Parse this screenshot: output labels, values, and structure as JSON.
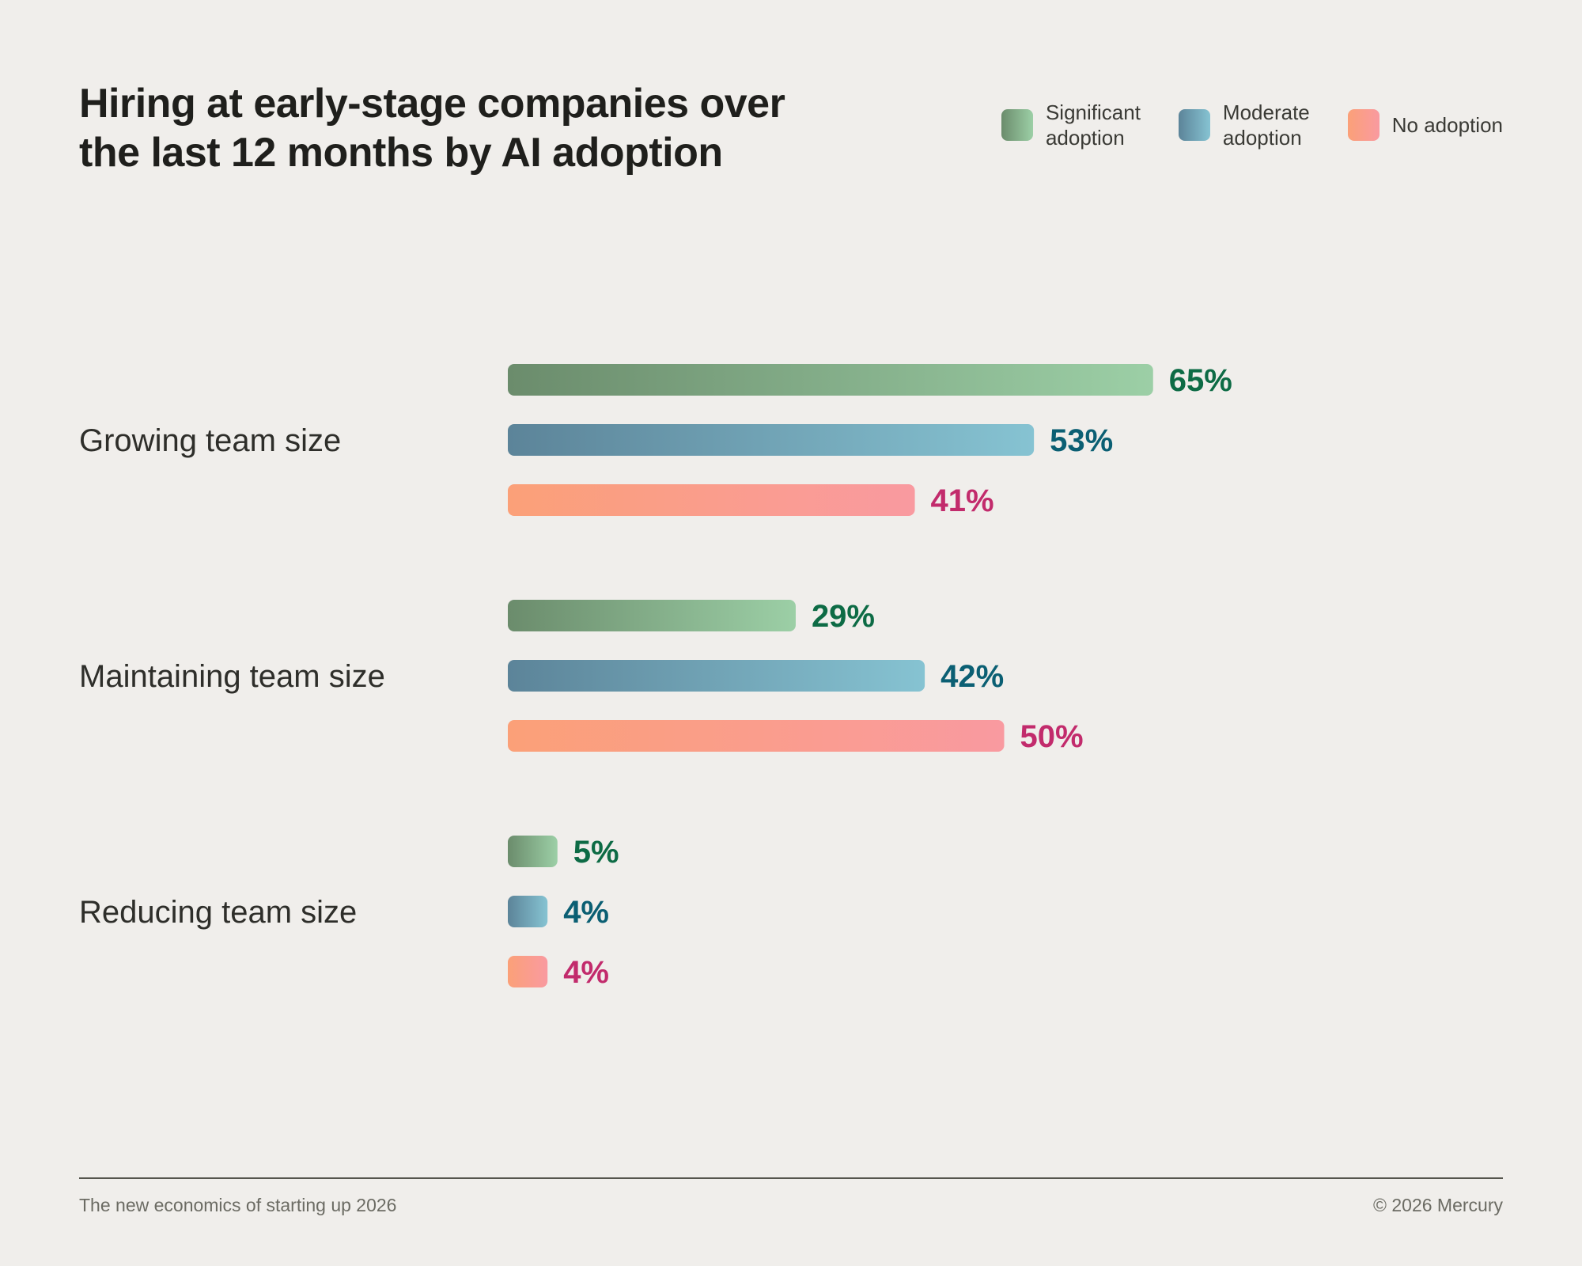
{
  "chart_data": {
    "type": "bar",
    "orientation": "horizontal",
    "title": "Hiring at early-stage companies over the last 12 months by AI adoption",
    "categories": [
      "Growing team size",
      "Maintaining team size",
      "Reducing team size"
    ],
    "series": [
      {
        "name": "Significant adoption",
        "values": [
          65,
          29,
          5
        ],
        "labels": [
          "65%",
          "29%",
          "5%"
        ]
      },
      {
        "name": "Moderate adoption",
        "values": [
          53,
          42,
          4
        ],
        "labels": [
          "53%",
          "42%",
          "4%"
        ]
      },
      {
        "name": "No adoption",
        "values": [
          41,
          50,
          4
        ],
        "labels": [
          "41%",
          "50%",
          "4%"
        ]
      }
    ],
    "unit": "%",
    "xlim": [
      0,
      100
    ],
    "grid": false,
    "legend_position": "top-right"
  },
  "legend": [
    {
      "label": "Significant\nadoption"
    },
    {
      "label": "Moderate\nadoption"
    },
    {
      "label": "No adoption"
    }
  ],
  "colors": {
    "significant": {
      "start": "#6b8c6c",
      "end": "#9ccfa6",
      "text": "#0d6b45"
    },
    "moderate": {
      "start": "#5c8499",
      "end": "#86c3d2",
      "text": "#0b5f73"
    },
    "none": {
      "start": "#fba078",
      "end": "#f99aa0",
      "text": "#c22b6c"
    },
    "background": "#f0eeeb"
  },
  "footer": {
    "left": "The new economics of starting up 2026",
    "right": "© 2026 Mercury"
  }
}
